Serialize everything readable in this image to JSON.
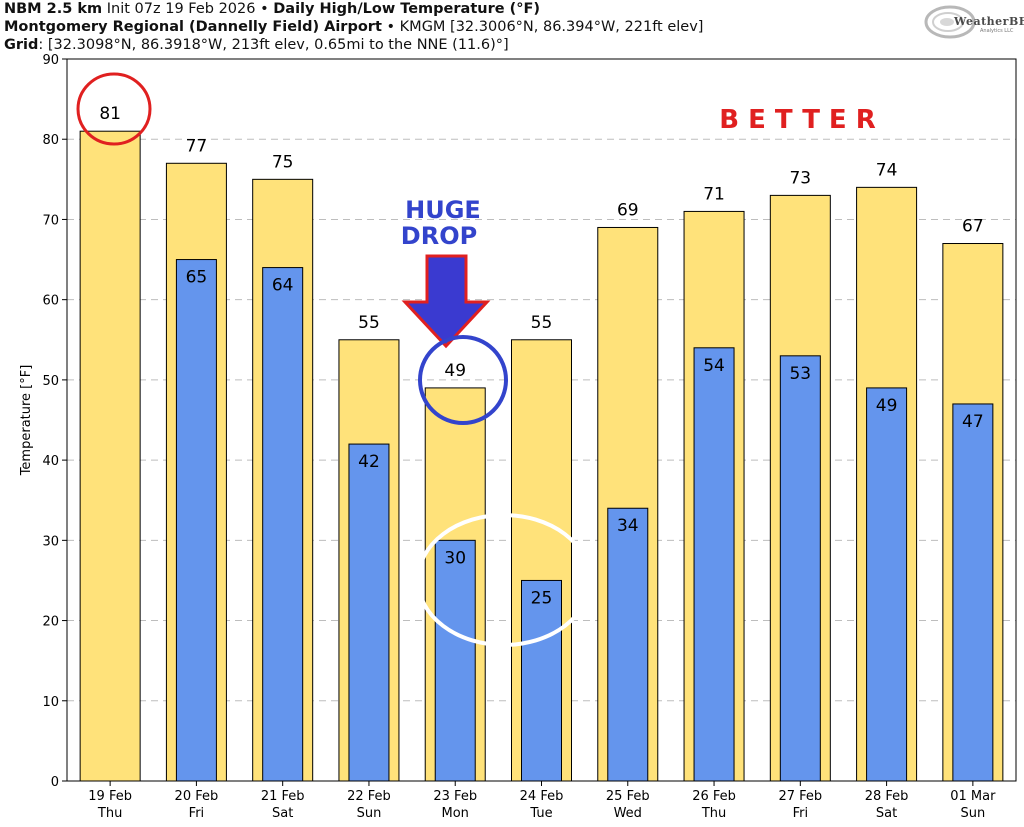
{
  "header": {
    "line1_model": "NBM 2.5 km",
    "line1_init": "Init 07z 19 Feb 2026",
    "line1_sep": "•",
    "line1_title": "Daily High/Low Temperature (°F)",
    "line2_station": "Montgomery Regional (Dannelly Field) Airport",
    "line2_sep": "•",
    "line2_detail": "KMGM [32.3006°N, 86.394°W, 221ft elev]",
    "line3_label": "Grid",
    "line3_detail": ": [32.3098°N, 86.3918°W, 213ft elev, 0.65mi to the NNE (11.6)°]"
  },
  "logo": {
    "text": "WeatherBELL",
    "sub": "Analytics LLC"
  },
  "annotations": {
    "better": "BETTER",
    "huge_drop_line1": "HUGE",
    "huge_drop_line2": "DROP"
  },
  "colors": {
    "high_bar": "#ffe27a",
    "low_bar": "#6495ed",
    "red_circle": "#e02020",
    "blue_circle": "#3344cc",
    "arrow_fill": "#3a3ad0",
    "arrow_outline": "#e02020",
    "better_text": "#e02020",
    "drop_text": "#3344cc",
    "white_circle": "#ffffff"
  },
  "chart_data": {
    "type": "bar",
    "title": "Daily High/Low Temperature (°F)",
    "ylabel": "Temperature [°F]",
    "ylim": [
      0,
      90
    ],
    "yticks": [
      "0",
      "10",
      "20",
      "30",
      "40",
      "50",
      "60",
      "70",
      "80",
      "90"
    ],
    "grid": true,
    "categories": [
      [
        "19 Feb",
        "Thu"
      ],
      [
        "20 Feb",
        "Fri"
      ],
      [
        "21 Feb",
        "Sat"
      ],
      [
        "22 Feb",
        "Sun"
      ],
      [
        "23 Feb",
        "Mon"
      ],
      [
        "24 Feb",
        "Tue"
      ],
      [
        "25 Feb",
        "Wed"
      ],
      [
        "26 Feb",
        "Thu"
      ],
      [
        "27 Feb",
        "Fri"
      ],
      [
        "28 Feb",
        "Sat"
      ],
      [
        "01 Mar",
        "Sun"
      ]
    ],
    "series": [
      {
        "values": [
          81,
          77,
          75,
          55,
          49,
          55,
          69,
          71,
          73,
          74,
          67
        ],
        "labels": [
          "81",
          "77",
          "75",
          "55",
          "49",
          "55",
          "69",
          "71",
          "73",
          "74",
          "67"
        ]
      },
      {
        "values": [
          null,
          65,
          64,
          42,
          30,
          25,
          34,
          54,
          53,
          49,
          47
        ],
        "labels": [
          "",
          "65",
          "64",
          "42",
          "30",
          "25",
          "34",
          "54",
          "53",
          "49",
          "47"
        ]
      }
    ]
  }
}
